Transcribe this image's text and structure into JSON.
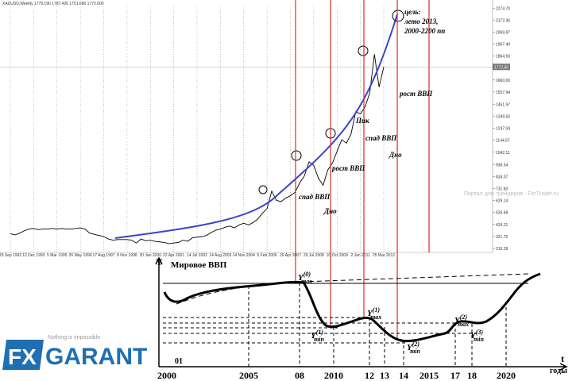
{
  "chart_data": {
    "type": "line",
    "title": "XAUUSD,Weekly  1779.190 1787.420 1751.680 1772.600",
    "categories": [
      "29 Sep 1992",
      null,
      null,
      null,
      null,
      "12 Dec 1993",
      null,
      null,
      null,
      null,
      "5 Mar 1995",
      null,
      null,
      null,
      null,
      "26 May 1996",
      null,
      null,
      null,
      null,
      "17 Aug 1997",
      null,
      null,
      null,
      null,
      "8 Nov 1998",
      null,
      null,
      null,
      null,
      "30 Jan 2000",
      null,
      null,
      null,
      null,
      "22 Apr 2001",
      null,
      null,
      null,
      null,
      "14 Jul 2002",
      null,
      null,
      null,
      null,
      "14 Aug 2003",
      null,
      null,
      null,
      null,
      "14 Nov 2004",
      null,
      null,
      null,
      null,
      "5 Feb 2006",
      null,
      null,
      null,
      null,
      "29 Apr 2007",
      null,
      null,
      null,
      null,
      "20 Jul 2008",
      null,
      null,
      null,
      null,
      "10 Oct 2009",
      null,
      null,
      null,
      null,
      "2 Jan 2011",
      null,
      null,
      null,
      null,
      "25 Mar 2012"
    ],
    "values": [
      345,
      335,
      350,
      370,
      385,
      390,
      380,
      385,
      385,
      390,
      385,
      390,
      385,
      385,
      390,
      395,
      385,
      350,
      340,
      330,
      320,
      300,
      290,
      295,
      295,
      295,
      290,
      265,
      300,
      285,
      290,
      280,
      275,
      270,
      260,
      265,
      270,
      290,
      280,
      310,
      315,
      320,
      330,
      355,
      375,
      385,
      400,
      410,
      395,
      420,
      435,
      420,
      440,
      470,
      520,
      560,
      710,
      630,
      620,
      650,
      670,
      700,
      780,
      840,
      960,
      930,
      820,
      760,
      890,
      950,
      1050,
      1150,
      1120,
      1200,
      1390,
      1370,
      1430,
      1550,
      1880,
      1600,
      1772.6
    ],
    "color": "#000000",
    "ylim": [
      185,
      2345
    ],
    "yticks": [
      {
        "value": 219.28,
        "label": "219.28"
      },
      {
        "value": 321.75,
        "label": "321.75"
      },
      {
        "value": 424.21,
        "label": "424.21"
      },
      {
        "value": 526.68,
        "label": "526.68"
      },
      {
        "value": 629.14,
        "label": "629.14"
      },
      {
        "value": 731.6,
        "label": "731.60"
      },
      {
        "value": 834.07,
        "label": "834.07"
      },
      {
        "value": 936.54,
        "label": "936.54"
      },
      {
        "value": 1042.11,
        "label": "1042.11"
      },
      {
        "value": 1144.57,
        "label": "1144.57"
      },
      {
        "value": 1247.04,
        "label": "1247.04"
      },
      {
        "value": 1349.5,
        "label": "1349.50"
      },
      {
        "value": 1451.97,
        "label": "1451.97"
      },
      {
        "value": 1557.94,
        "label": "1557.94"
      },
      {
        "value": 1660.0,
        "label": "1660.00"
      },
      {
        "value": 1864.93,
        "label": "1864.93"
      },
      {
        "value": 1967.4,
        "label": "1967.40"
      },
      {
        "value": 2069.87,
        "label": "2069.87"
      },
      {
        "value": 2172.36,
        "label": "2172.36"
      },
      {
        "value": 2274.7,
        "label": "2274.70"
      }
    ],
    "grid": true,
    "last_value": {
      "value": 1772.6,
      "label": "1772.60"
    },
    "watermark": "Портал для трейдеров - ForTrader.ru",
    "annotations": [
      "цель:",
      "лето 2013,",
      "2000-2200 пп",
      "рост ВВП",
      "Пик",
      "спад ВВП",
      "Дно",
      "рост ВВП",
      "спад ВВП",
      "Дно"
    ]
  },
  "gdp_diagram": {
    "y_label": "Y",
    "title": "Мировое ВВП",
    "x_label": "t",
    "units": "годы",
    "years": [
      "2000",
      "2005",
      "08",
      "2010",
      "12",
      "13",
      "14",
      "2015",
      "17",
      "18",
      "2020"
    ],
    "start_note": "01",
    "levels": [
      {
        "main": "Y",
        "sub": "max",
        "sup": "(0)"
      },
      {
        "main": "Y",
        "sub": "max",
        "sup": "(1)"
      },
      {
        "main": "Y",
        "sub": "min",
        "sup": "(1)"
      },
      {
        "main": "Y",
        "sub": "min",
        "sup": "(2)"
      },
      {
        "main": "Y",
        "sub": "max",
        "sup": "(2)"
      },
      {
        "main": "Y",
        "sub": "min",
        "sup": "(3)"
      }
    ]
  },
  "logo": {
    "mark": "FX",
    "name": "GARANT",
    "slogan": "Nothing is impossible"
  }
}
